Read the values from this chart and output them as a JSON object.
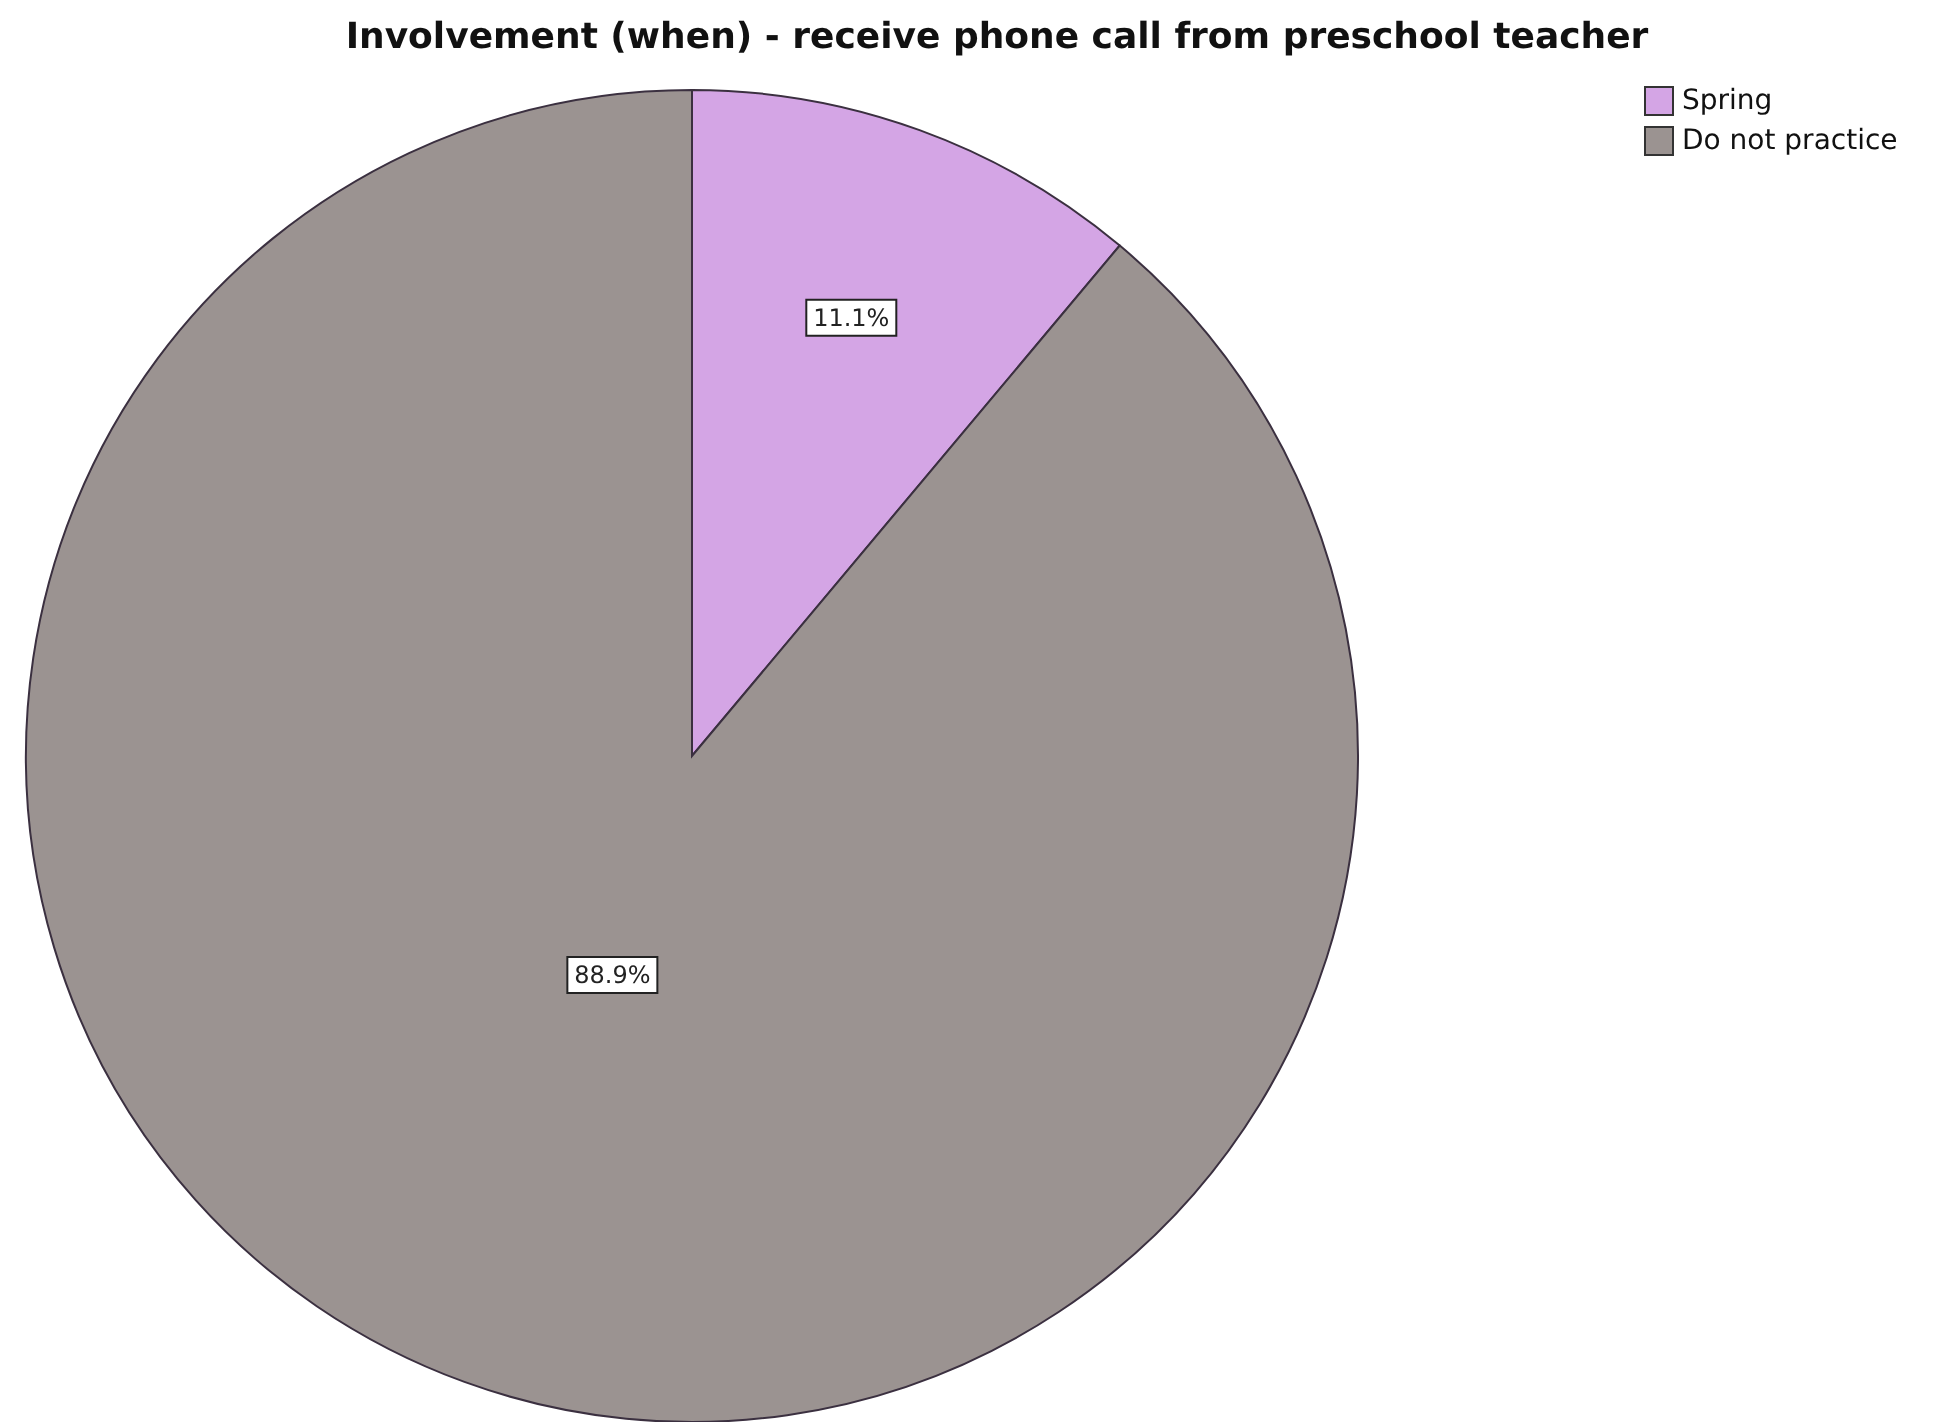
{
  "chart_data": {
    "type": "pie",
    "title": "Involvement (when) - receive phone call from preschool teacher",
    "categories": [
      "Spring",
      "Do not practice"
    ],
    "values": [
      11.1,
      88.9
    ],
    "colors": [
      "#d4a5e5",
      "#9b9391"
    ],
    "value_labels": [
      "11.1%",
      "88.9%"
    ],
    "legend": "top right"
  }
}
